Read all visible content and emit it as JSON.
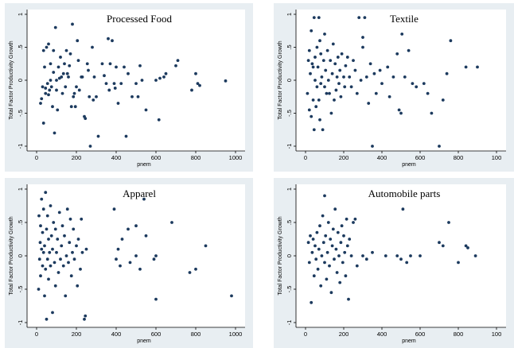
{
  "chart_data": [
    {
      "type": "scatter",
      "title": "Processed Food",
      "xlabel": "pnem",
      "ylabel": "Total Factor Productivity Growth",
      "xlim": [
        0,
        1000
      ],
      "ylim": [
        -1,
        1
      ],
      "x_ticks": [
        "0",
        "200",
        "400",
        "600",
        "800",
        "1000"
      ],
      "y_ticks": [
        "-1",
        "-.5",
        "0",
        ".5",
        "1"
      ],
      "points": [
        [
          20,
          -0.35
        ],
        [
          25,
          -0.28
        ],
        [
          30,
          -0.1
        ],
        [
          35,
          0.45
        ],
        [
          35,
          -0.65
        ],
        [
          40,
          0.2
        ],
        [
          45,
          -0.2
        ],
        [
          45,
          -0.12
        ],
        [
          50,
          0.5
        ],
        [
          55,
          -0.05
        ],
        [
          60,
          0.55
        ],
        [
          60,
          -0.22
        ],
        [
          65,
          -0.15
        ],
        [
          70,
          0.0
        ],
        [
          70,
          0.25
        ],
        [
          75,
          -0.1
        ],
        [
          80,
          -0.4
        ],
        [
          85,
          0.12
        ],
        [
          85,
          0.45
        ],
        [
          90,
          -0.8
        ],
        [
          95,
          0.8
        ],
        [
          100,
          -0.15
        ],
        [
          100,
          0.0
        ],
        [
          105,
          -0.45
        ],
        [
          110,
          0.2
        ],
        [
          115,
          0.03
        ],
        [
          120,
          0.35
        ],
        [
          125,
          0.05
        ],
        [
          130,
          -0.2
        ],
        [
          135,
          0.1
        ],
        [
          140,
          0.25
        ],
        [
          145,
          -0.1
        ],
        [
          150,
          0.45
        ],
        [
          155,
          0.1
        ],
        [
          160,
          0.05
        ],
        [
          165,
          0.22
        ],
        [
          170,
          0.4
        ],
        [
          175,
          -0.4
        ],
        [
          180,
          0.85
        ],
        [
          185,
          -0.25
        ],
        [
          190,
          -0.2
        ],
        [
          195,
          -0.4
        ],
        [
          200,
          -0.1
        ],
        [
          205,
          0.6
        ],
        [
          210,
          0.3
        ],
        [
          215,
          -0.15
        ],
        [
          225,
          0.05
        ],
        [
          230,
          0.05
        ],
        [
          240,
          -0.55
        ],
        [
          245,
          -0.58
        ],
        [
          255,
          0.25
        ],
        [
          260,
          0.15
        ],
        [
          265,
          -0.25
        ],
        [
          270,
          -1.0
        ],
        [
          280,
          0.5
        ],
        [
          285,
          -0.3
        ],
        [
          290,
          0.05
        ],
        [
          300,
          -0.25
        ],
        [
          310,
          -0.85
        ],
        [
          330,
          0.25
        ],
        [
          340,
          0.07
        ],
        [
          350,
          -0.05
        ],
        [
          360,
          0.63
        ],
        [
          365,
          -0.15
        ],
        [
          370,
          0.25
        ],
        [
          380,
          0.6
        ],
        [
          390,
          -0.05
        ],
        [
          395,
          -0.12
        ],
        [
          400,
          0.2
        ],
        [
          410,
          -0.35
        ],
        [
          425,
          -0.05
        ],
        [
          440,
          0.2
        ],
        [
          450,
          -0.85
        ],
        [
          460,
          0.1
        ],
        [
          480,
          -0.25
        ],
        [
          500,
          -0.05
        ],
        [
          510,
          -0.25
        ],
        [
          520,
          0.22
        ],
        [
          530,
          0.0
        ],
        [
          550,
          -0.45
        ],
        [
          600,
          0.0
        ],
        [
          615,
          -0.6
        ],
        [
          620,
          0.03
        ],
        [
          640,
          0.05
        ],
        [
          650,
          0.1
        ],
        [
          700,
          0.22
        ],
        [
          710,
          0.3
        ],
        [
          780,
          -0.15
        ],
        [
          800,
          0.1
        ],
        [
          810,
          -0.05
        ],
        [
          820,
          -0.08
        ],
        [
          950,
          -0.01
        ]
      ]
    },
    {
      "type": "scatter",
      "title": "Textile",
      "xlabel": "pnem",
      "ylabel": "Total Factor Productivity Growth",
      "xlim": [
        0,
        1000
      ],
      "ylim": [
        -1,
        1
      ],
      "x_ticks": [
        "0",
        "200",
        "400",
        "600",
        "800",
        "100"
      ],
      "y_ticks": [
        "-1",
        "-.5",
        "0",
        ".5",
        "1"
      ],
      "points": [
        [
          10,
          -0.2
        ],
        [
          15,
          0.3
        ],
        [
          20,
          0.45
        ],
        [
          20,
          -0.45
        ],
        [
          25,
          0.1
        ],
        [
          30,
          0.75
        ],
        [
          30,
          -0.55
        ],
        [
          35,
          0.25
        ],
        [
          40,
          -0.3
        ],
        [
          40,
          0.2
        ],
        [
          45,
          0.95
        ],
        [
          45,
          -0.75
        ],
        [
          50,
          0.0
        ],
        [
          50,
          0.35
        ],
        [
          55,
          -0.4
        ],
        [
          60,
          0.5
        ],
        [
          60,
          -0.1
        ],
        [
          65,
          0.2
        ],
        [
          70,
          0.95
        ],
        [
          70,
          -0.3
        ],
        [
          75,
          0.6
        ],
        [
          75,
          -0.6
        ],
        [
          80,
          0.4
        ],
        [
          80,
          -0.05
        ],
        [
          85,
          0.05
        ],
        [
          90,
          -0.75
        ],
        [
          95,
          0.3
        ],
        [
          100,
          0.7
        ],
        [
          100,
          -0.1
        ],
        [
          105,
          0.15
        ],
        [
          110,
          -0.2
        ],
        [
          115,
          0.45
        ],
        [
          120,
          0.0
        ],
        [
          125,
          -0.2
        ],
        [
          130,
          0.3
        ],
        [
          135,
          -0.5
        ],
        [
          140,
          0.1
        ],
        [
          145,
          0.55
        ],
        [
          150,
          -0.3
        ],
        [
          155,
          0.25
        ],
        [
          160,
          -0.15
        ],
        [
          165,
          0.05
        ],
        [
          170,
          0.35
        ],
        [
          175,
          -0.05
        ],
        [
          180,
          0.15
        ],
        [
          185,
          -0.25
        ],
        [
          190,
          0.4
        ],
        [
          200,
          0.05
        ],
        [
          205,
          -0.1
        ],
        [
          210,
          0.22
        ],
        [
          220,
          0.35
        ],
        [
          230,
          0.05
        ],
        [
          240,
          -0.1
        ],
        [
          250,
          0.3
        ],
        [
          260,
          0.15
        ],
        [
          270,
          -0.2
        ],
        [
          280,
          0.95
        ],
        [
          290,
          0.0
        ],
        [
          300,
          0.65
        ],
        [
          300,
          0.5
        ],
        [
          310,
          0.95
        ],
        [
          320,
          0.05
        ],
        [
          330,
          -0.35
        ],
        [
          340,
          0.25
        ],
        [
          350,
          -1.0
        ],
        [
          360,
          0.1
        ],
        [
          370,
          -0.2
        ],
        [
          390,
          0.15
        ],
        [
          400,
          -0.05
        ],
        [
          430,
          0.2
        ],
        [
          440,
          -0.25
        ],
        [
          460,
          0.05
        ],
        [
          480,
          0.4
        ],
        [
          490,
          -0.45
        ],
        [
          500,
          -0.5
        ],
        [
          505,
          0.7
        ],
        [
          520,
          0.05
        ],
        [
          540,
          0.45
        ],
        [
          560,
          -0.05
        ],
        [
          580,
          -0.1
        ],
        [
          620,
          -0.05
        ],
        [
          640,
          -0.2
        ],
        [
          660,
          -0.5
        ],
        [
          700,
          -1.0
        ],
        [
          720,
          -0.3
        ],
        [
          740,
          0.1
        ],
        [
          760,
          0.6
        ],
        [
          840,
          0.2
        ],
        [
          900,
          0.2
        ]
      ]
    },
    {
      "type": "scatter",
      "title": "Apparel",
      "xlabel": "pnem",
      "ylabel": "Total Factor Productivity Growth",
      "xlim": [
        0,
        1000
      ],
      "ylim": [
        -1,
        1
      ],
      "x_ticks": [
        "0",
        "200",
        "400",
        "600",
        "800",
        "1000"
      ],
      "y_ticks": [
        "-1",
        "-.5",
        "0",
        ".5",
        "1"
      ],
      "points": [
        [
          10,
          -0.5
        ],
        [
          12,
          0.6
        ],
        [
          15,
          -0.05
        ],
        [
          18,
          0.2
        ],
        [
          20,
          0.45
        ],
        [
          20,
          -0.3
        ],
        [
          25,
          0.1
        ],
        [
          25,
          0.85
        ],
        [
          30,
          -0.15
        ],
        [
          30,
          0.35
        ],
        [
          35,
          0.05
        ],
        [
          35,
          0.7
        ],
        [
          40,
          -0.6
        ],
        [
          40,
          0.15
        ],
        [
          45,
          0.95
        ],
        [
          45,
          -0.2
        ],
        [
          50,
          -0.95
        ],
        [
          50,
          0.4
        ],
        [
          55,
          -0.05
        ],
        [
          55,
          0.6
        ],
        [
          60,
          0.25
        ],
        [
          60,
          -0.35
        ],
        [
          65,
          0.05
        ],
        [
          70,
          0.75
        ],
        [
          70,
          -0.15
        ],
        [
          75,
          0.3
        ],
        [
          80,
          -0.85
        ],
        [
          80,
          0.1
        ],
        [
          85,
          0.5
        ],
        [
          90,
          -0.1
        ],
        [
          95,
          0.4
        ],
        [
          95,
          -0.45
        ],
        [
          100,
          0.05
        ],
        [
          105,
          0.25
        ],
        [
          110,
          -0.25
        ],
        [
          115,
          0.65
        ],
        [
          120,
          -0.05
        ],
        [
          125,
          0.15
        ],
        [
          130,
          0.45
        ],
        [
          135,
          -0.15
        ],
        [
          140,
          0.3
        ],
        [
          145,
          -0.6
        ],
        [
          150,
          0.0
        ],
        [
          155,
          0.7
        ],
        [
          160,
          -0.1
        ],
        [
          165,
          0.2
        ],
        [
          170,
          0.55
        ],
        [
          175,
          -0.3
        ],
        [
          180,
          0.05
        ],
        [
          185,
          0.4
        ],
        [
          190,
          -0.05
        ],
        [
          200,
          0.15
        ],
        [
          205,
          -0.45
        ],
        [
          210,
          0.25
        ],
        [
          220,
          -0.2
        ],
        [
          225,
          0.55
        ],
        [
          230,
          0.05
        ],
        [
          240,
          -0.95
        ],
        [
          245,
          -0.9
        ],
        [
          250,
          0.1
        ],
        [
          390,
          0.7
        ],
        [
          400,
          -0.05
        ],
        [
          410,
          0.1
        ],
        [
          420,
          -0.15
        ],
        [
          430,
          0.25
        ],
        [
          460,
          0.4
        ],
        [
          470,
          -0.1
        ],
        [
          500,
          0.45
        ],
        [
          500,
          0.0
        ],
        [
          520,
          -0.2
        ],
        [
          540,
          0.85
        ],
        [
          550,
          0.3
        ],
        [
          590,
          -0.05
        ],
        [
          600,
          0.0
        ],
        [
          600,
          -0.65
        ],
        [
          680,
          0.5
        ],
        [
          770,
          -0.25
        ],
        [
          800,
          -0.2
        ],
        [
          850,
          0.15
        ],
        [
          980,
          -0.6
        ]
      ]
    },
    {
      "type": "scatter",
      "title": "Automobile parts",
      "xlabel": "pnem",
      "ylabel": "Total Factor Productivity Growth",
      "xlim": [
        0,
        1000
      ],
      "ylim": [
        -1,
        1
      ],
      "x_ticks": [
        "0",
        "200",
        "400",
        "600",
        "800",
        "100"
      ],
      "y_ticks": [
        "-1",
        "-.5",
        "0",
        ".5",
        "1"
      ],
      "points": [
        [
          15,
          0.2
        ],
        [
          20,
          -0.1
        ],
        [
          25,
          0.3
        ],
        [
          30,
          -0.7
        ],
        [
          35,
          0.05
        ],
        [
          40,
          0.25
        ],
        [
          45,
          -0.3
        ],
        [
          50,
          0.15
        ],
        [
          55,
          -0.05
        ],
        [
          60,
          0.35
        ],
        [
          65,
          -0.2
        ],
        [
          70,
          0.1
        ],
        [
          75,
          0.45
        ],
        [
          80,
          -0.45
        ],
        [
          85,
          0.0
        ],
        [
          90,
          0.6
        ],
        [
          95,
          0.2
        ],
        [
          100,
          -0.1
        ],
        [
          100,
          0.9
        ],
        [
          105,
          0.3
        ],
        [
          110,
          -0.35
        ],
        [
          115,
          0.05
        ],
        [
          120,
          0.5
        ],
        [
          125,
          -0.15
        ],
        [
          130,
          0.25
        ],
        [
          135,
          -0.55
        ],
        [
          140,
          0.15
        ],
        [
          145,
          0.4
        ],
        [
          150,
          -0.05
        ],
        [
          155,
          0.7
        ],
        [
          160,
          0.1
        ],
        [
          165,
          -0.25
        ],
        [
          170,
          0.35
        ],
        [
          175,
          0.0
        ],
        [
          180,
          -0.4
        ],
        [
          185,
          0.2
        ],
        [
          190,
          0.45
        ],
        [
          195,
          -0.1
        ],
        [
          200,
          0.3
        ],
        [
          205,
          0.05
        ],
        [
          210,
          -0.3
        ],
        [
          215,
          0.55
        ],
        [
          220,
          0.15
        ],
        [
          225,
          -0.65
        ],
        [
          230,
          0.25
        ],
        [
          240,
          0.0
        ],
        [
          250,
          0.5
        ],
        [
          260,
          0.55
        ],
        [
          270,
          -0.15
        ],
        [
          300,
          0.0
        ],
        [
          320,
          -0.05
        ],
        [
          350,
          0.05
        ],
        [
          420,
          0.0
        ],
        [
          480,
          0.0
        ],
        [
          500,
          -0.05
        ],
        [
          510,
          0.7
        ],
        [
          530,
          -0.1
        ],
        [
          550,
          0.0
        ],
        [
          600,
          0.0
        ],
        [
          700,
          0.2
        ],
        [
          720,
          0.15
        ],
        [
          750,
          0.5
        ],
        [
          800,
          -0.1
        ],
        [
          840,
          0.15
        ],
        [
          850,
          0.12
        ],
        [
          890,
          0.0
        ]
      ]
    }
  ]
}
